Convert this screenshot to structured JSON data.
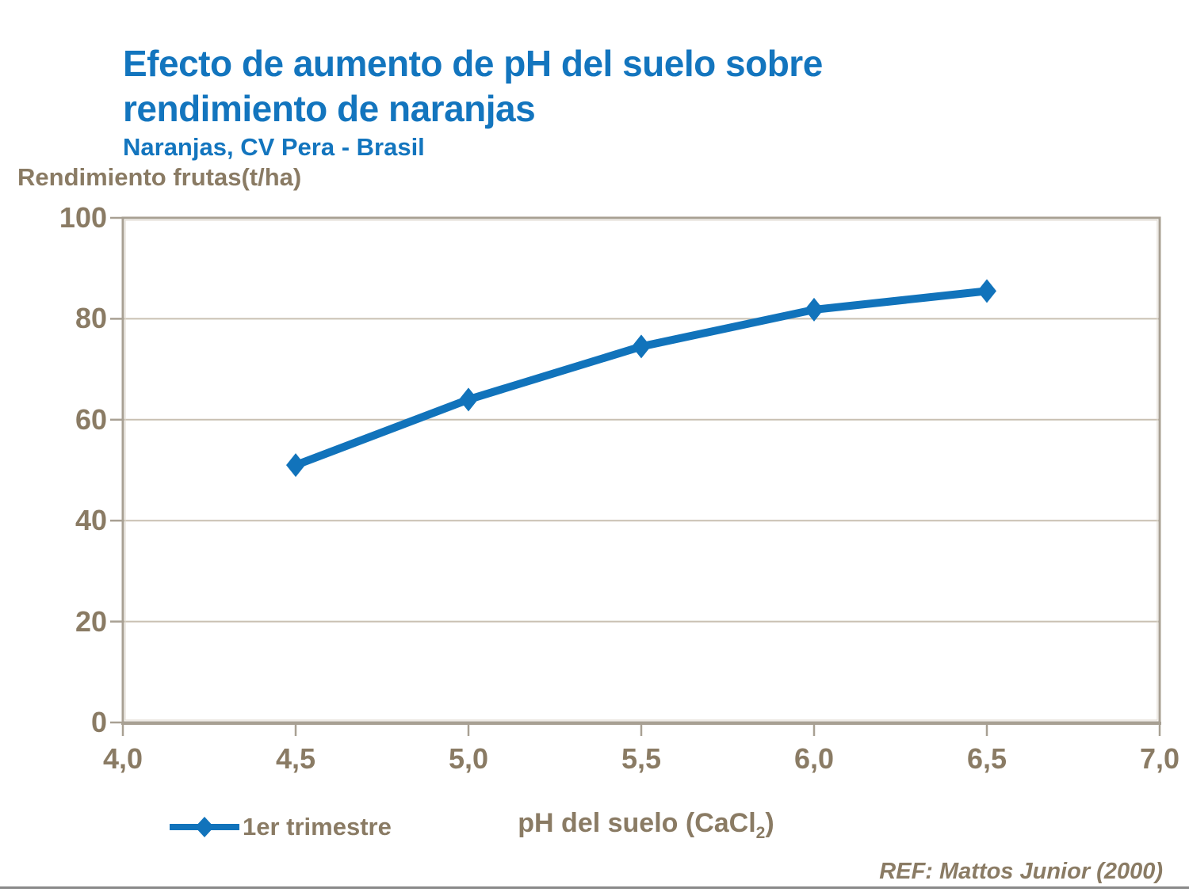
{
  "colors": {
    "title_blue": "#1375BE",
    "series_blue": "#1173BB",
    "text_brown": "#8A7B64",
    "gridline": "#C9C0B2",
    "frame": "#A8A093",
    "frame_light": "#DCD6CB",
    "bottom_rule": "#8A8A8A",
    "plot_background": "#FFFFFF"
  },
  "title": {
    "line1": "Efecto de aumento de pH del suelo sobre",
    "line2": "rendimiento de naranjas",
    "subtitle": "Naranjas, CV Pera - Brasil"
  },
  "axes": {
    "y_title": "Rendimiento frutas(t/ha)",
    "x_title_main": "pH del suelo (CaCl",
    "x_title_sub": "2",
    "x_title_close": ")"
  },
  "legend": {
    "label": "1er trimestre"
  },
  "footer": {
    "ref": "REF: Mattos Junior (2000)"
  },
  "chart_data": {
    "type": "line",
    "title": "Efecto de aumento de pH del suelo sobre rendimiento de naranjas",
    "subtitle": "Naranjas, CV Pera - Brasil",
    "xlabel": "pH del suelo (CaCl2)",
    "ylabel": "Rendimiento frutas(t/ha)",
    "x_range": [
      4.0,
      7.0
    ],
    "y_range": [
      0,
      100
    ],
    "x_ticks": [
      {
        "v": 4.0,
        "label": "4,0"
      },
      {
        "v": 4.5,
        "label": "4,5"
      },
      {
        "v": 5.0,
        "label": "5,0"
      },
      {
        "v": 5.5,
        "label": "5,5"
      },
      {
        "v": 6.0,
        "label": "6,0"
      },
      {
        "v": 6.5,
        "label": "6,5"
      },
      {
        "v": 7.0,
        "label": "7,0"
      }
    ],
    "y_ticks": [
      {
        "v": 0,
        "label": "0"
      },
      {
        "v": 20,
        "label": "20"
      },
      {
        "v": 40,
        "label": "40"
      },
      {
        "v": 60,
        "label": "60"
      },
      {
        "v": 80,
        "label": "80"
      },
      {
        "v": 100,
        "label": "100"
      }
    ],
    "grid": "horizontal",
    "legend_position": "bottom-left",
    "series": [
      {
        "name": "1er trimestre",
        "marker": "diamond",
        "color": "#1173BB",
        "x": [
          4.5,
          5.0,
          5.5,
          6.0,
          6.5
        ],
        "y": [
          51,
          64,
          74.5,
          81.8,
          85.5
        ]
      }
    ],
    "source": "REF: Mattos Junior (2000)"
  }
}
